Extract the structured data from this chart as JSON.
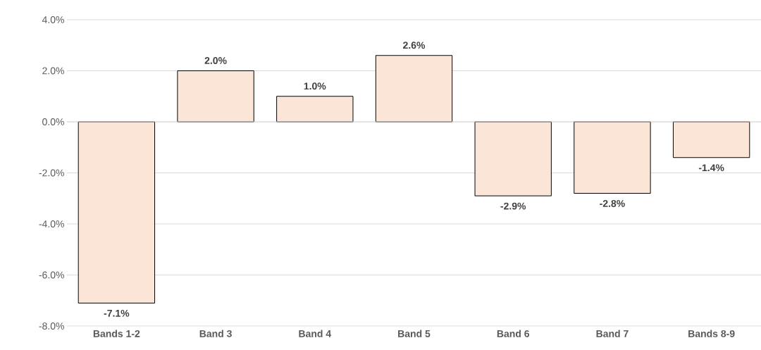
{
  "chart_data": {
    "type": "bar",
    "categories": [
      "Bands 1-2",
      "Band 3",
      "Band 4",
      "Band 5",
      "Band 6",
      "Band 7",
      "Bands 8-9"
    ],
    "values": [
      -7.1,
      2.0,
      1.0,
      2.6,
      -2.9,
      -2.8,
      -1.4
    ],
    "value_labels": [
      "-7.1%",
      "2.0%",
      "1.0%",
      "2.6%",
      "-2.9%",
      "-2.8%",
      "-1.4%"
    ],
    "color": "#fbe5d6",
    "ylim": [
      -8,
      4
    ],
    "yticks": [
      {
        "value": -8,
        "label": "-8.0%"
      },
      {
        "value": -6,
        "label": "-6.0%"
      },
      {
        "value": -4,
        "label": "-4.0%"
      },
      {
        "value": -2,
        "label": "-2.0%"
      },
      {
        "value": 0,
        "label": "0.0%"
      },
      {
        "value": 2,
        "label": "2.0%"
      },
      {
        "value": 4,
        "label": "4.0%"
      }
    ],
    "grid": "y"
  }
}
